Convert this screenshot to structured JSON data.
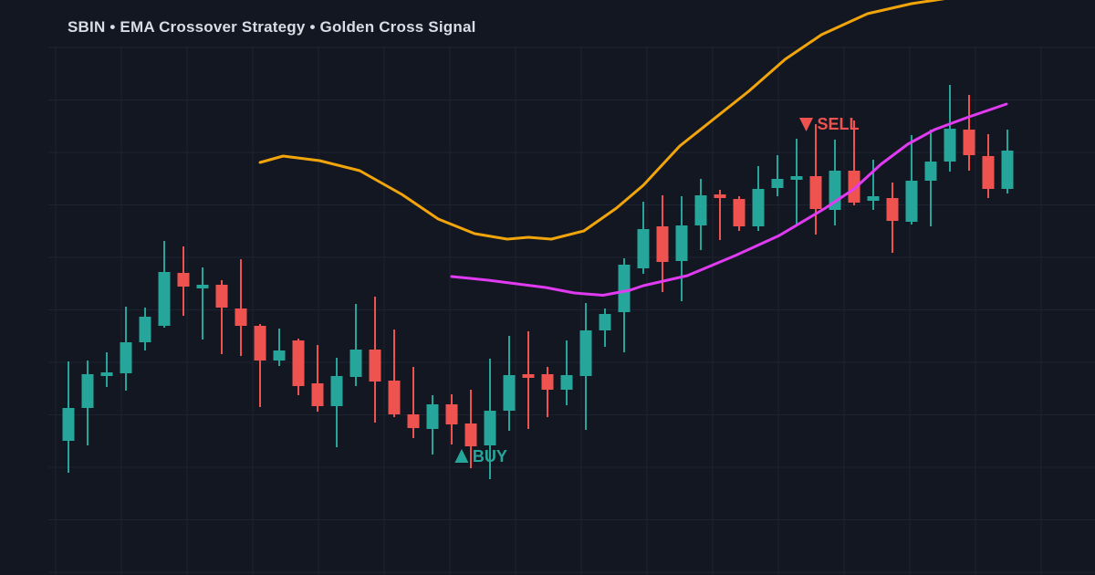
{
  "header": {
    "title": "SBIN • EMA Crossover Strategy • Golden Cross Signal"
  },
  "colors": {
    "background": "#131722",
    "grid": "#1d2330",
    "bullish": "#26a69a",
    "bearish": "#ef5350",
    "ema_fast": "#e13bf2",
    "ema_slow": "#f2a50a",
    "title_text": "#d9dce4"
  },
  "chart_data": {
    "type": "candlestick",
    "title": "SBIN • EMA Crossover Strategy • Golden Cross Signal",
    "symbol": "SBIN",
    "strategy": "EMA Crossover Strategy",
    "signal_name": "Golden Cross Signal",
    "ylim": [
      520,
      646
    ],
    "x0": 75,
    "dx": 21,
    "grid_visible": true,
    "axis_labels_visible": false,
    "candles_ohlc": [
      [
        549.4,
        566.8,
        542.4,
        556.6
      ],
      [
        556.6,
        567.0,
        548.4,
        564.0
      ],
      [
        563.6,
        568.8,
        561.2,
        564.4
      ],
      [
        564.2,
        578.8,
        560.4,
        571.0
      ],
      [
        571.0,
        578.6,
        569.2,
        576.6
      ],
      [
        574.6,
        593.2,
        574.2,
        586.4
      ],
      [
        586.2,
        592.0,
        576.8,
        583.2
      ],
      [
        582.8,
        587.4,
        571.6,
        583.6
      ],
      [
        583.6,
        584.6,
        568.4,
        578.6
      ],
      [
        578.4,
        589.2,
        568.0,
        574.6
      ],
      [
        574.6,
        575.0,
        556.8,
        567.0
      ],
      [
        567.0,
        574.0,
        565.8,
        569.2
      ],
      [
        571.4,
        571.8,
        559.4,
        561.4
      ],
      [
        562.0,
        570.4,
        555.8,
        557.0
      ],
      [
        557.0,
        567.6,
        548.0,
        563.6
      ],
      [
        563.4,
        579.4,
        561.4,
        569.4
      ],
      [
        569.4,
        581.0,
        553.4,
        562.4
      ],
      [
        562.6,
        573.8,
        554.6,
        555.2
      ],
      [
        555.2,
        565.6,
        550.0,
        552.2
      ],
      [
        552.0,
        559.4,
        546.4,
        557.4
      ],
      [
        557.4,
        559.6,
        548.6,
        553.0
      ],
      [
        553.2,
        560.6,
        543.4,
        548.2
      ],
      [
        548.4,
        567.4,
        541.0,
        556.0
      ],
      [
        556.0,
        572.4,
        551.6,
        563.8
      ],
      [
        564.0,
        573.4,
        552.0,
        563.2
      ],
      [
        564.0,
        565.6,
        554.6,
        560.6
      ],
      [
        560.6,
        571.4,
        557.2,
        563.8
      ],
      [
        563.6,
        579.6,
        551.8,
        573.6
      ],
      [
        573.6,
        578.4,
        570.0,
        577.2
      ],
      [
        577.6,
        589.4,
        568.8,
        588.0
      ],
      [
        587.2,
        601.8,
        586.0,
        595.8
      ],
      [
        596.4,
        603.2,
        582.0,
        588.6
      ],
      [
        588.8,
        603.0,
        580.0,
        596.6
      ],
      [
        596.6,
        606.8,
        591.2,
        603.2
      ],
      [
        603.4,
        604.4,
        593.4,
        602.6
      ],
      [
        602.4,
        603.0,
        595.4,
        596.4
      ],
      [
        596.4,
        609.6,
        595.4,
        604.6
      ],
      [
        604.8,
        612.0,
        603.0,
        606.8
      ],
      [
        606.6,
        615.6,
        596.4,
        607.4
      ],
      [
        607.4,
        618.8,
        594.6,
        600.2
      ],
      [
        600.0,
        615.4,
        596.6,
        608.6
      ],
      [
        608.6,
        619.6,
        601.0,
        601.6
      ],
      [
        602.0,
        611.0,
        600.0,
        603.0
      ],
      [
        602.6,
        606.0,
        590.6,
        597.6
      ],
      [
        597.4,
        616.4,
        596.8,
        606.4
      ],
      [
        606.4,
        617.6,
        596.4,
        610.6
      ],
      [
        610.6,
        627.4,
        608.4,
        617.8
      ],
      [
        617.6,
        625.2,
        608.6,
        612.0
      ],
      [
        611.8,
        616.6,
        602.6,
        604.6
      ],
      [
        604.6,
        617.6,
        603.6,
        613.0
      ]
    ],
    "series": [
      {
        "name": "ema-slow",
        "color_key": "ema_slow",
        "points": [
          [
            10.0,
            610.4
          ],
          [
            11.2,
            611.8
          ],
          [
            13.1,
            610.8
          ],
          [
            15.2,
            608.6
          ],
          [
            17.4,
            603.4
          ],
          [
            19.3,
            598.0
          ],
          [
            21.2,
            594.8
          ],
          [
            22.9,
            593.6
          ],
          [
            24.0,
            594.0
          ],
          [
            25.2,
            593.6
          ],
          [
            26.9,
            595.4
          ],
          [
            28.6,
            600.4
          ],
          [
            30.0,
            605.4
          ],
          [
            31.9,
            614.0
          ],
          [
            33.7,
            620.0
          ],
          [
            35.5,
            626.0
          ],
          [
            37.4,
            633.0
          ],
          [
            39.3,
            638.4
          ],
          [
            41.7,
            643.0
          ],
          [
            44.0,
            645.2
          ],
          [
            45.9,
            646.4
          ]
        ]
      },
      {
        "name": "ema-fast",
        "color_key": "ema_fast",
        "points": [
          [
            20.0,
            585.4
          ],
          [
            21.9,
            584.6
          ],
          [
            24.9,
            583.0
          ],
          [
            26.4,
            581.8
          ],
          [
            27.9,
            581.3
          ],
          [
            29.3,
            582.4
          ],
          [
            30.0,
            583.4
          ],
          [
            32.3,
            585.6
          ],
          [
            34.8,
            590.0
          ],
          [
            37.1,
            594.4
          ],
          [
            39.5,
            600.4
          ],
          [
            41.0,
            604.6
          ],
          [
            42.4,
            610.0
          ],
          [
            43.8,
            614.4
          ],
          [
            45.2,
            617.6
          ],
          [
            47.0,
            620.4
          ],
          [
            48.95,
            623.2
          ]
        ]
      }
    ],
    "signals": [
      {
        "type": "buy",
        "label": "BUY",
        "index": 20.52,
        "price": 546.0
      },
      {
        "type": "sell",
        "label": "SELL",
        "index": 38.5,
        "price": 618.8
      }
    ]
  }
}
